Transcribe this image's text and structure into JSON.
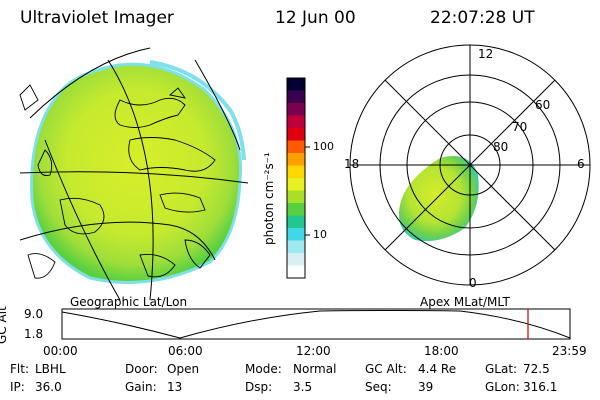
{
  "header": {
    "title": "Ultraviolet Imager",
    "date": "12 Jun 00",
    "time": "22:07:28 UT"
  },
  "colorbar": {
    "unit_label": "photon cm⁻²s⁻¹",
    "ticks": [
      "100",
      "10"
    ],
    "colors": [
      "#000033",
      "#3a004f",
      "#7a0050",
      "#c0003a",
      "#e00010",
      "#ff5a00",
      "#ffa000",
      "#ffd800",
      "#e8f020",
      "#a8e028",
      "#58d040",
      "#20c890",
      "#40d8e8",
      "#a0e8f0",
      "#d8f0f4",
      "#ffffff"
    ]
  },
  "panels": {
    "left_label": "Geographic Lat/Lon",
    "right_label": "Apex MLat/MLT"
  },
  "polar_grid": {
    "mlt_labels": {
      "top": "12",
      "left": "18",
      "right": "6",
      "bottom": "0"
    },
    "lat_labels": [
      "60",
      "70",
      "80"
    ]
  },
  "altitude_plot": {
    "ylabel": "GC Alt",
    "yticks": [
      "9.0",
      "1.8"
    ],
    "xticks": [
      "00:00",
      "06:00",
      "12:00",
      "18:00",
      "23:59"
    ],
    "marker_color": "#cc0000"
  },
  "status": {
    "row1": [
      {
        "label": "Flt:",
        "value": "LBHL"
      },
      {
        "label": "Door:",
        "value": "Open"
      },
      {
        "label": "Mode:",
        "value": "Normal"
      },
      {
        "label": "GC Alt:",
        "value": "4.4 Re"
      },
      {
        "label": "GLat:",
        "value": "72.5"
      }
    ],
    "row2": [
      {
        "label": "IP:",
        "value": "36.0"
      },
      {
        "label": "Gain:",
        "value": "13"
      },
      {
        "label": "Dsp:",
        "value": "3.5"
      },
      {
        "label": "Seq:",
        "value": "39"
      },
      {
        "label": "GLon:",
        "value": "316.1"
      }
    ]
  }
}
